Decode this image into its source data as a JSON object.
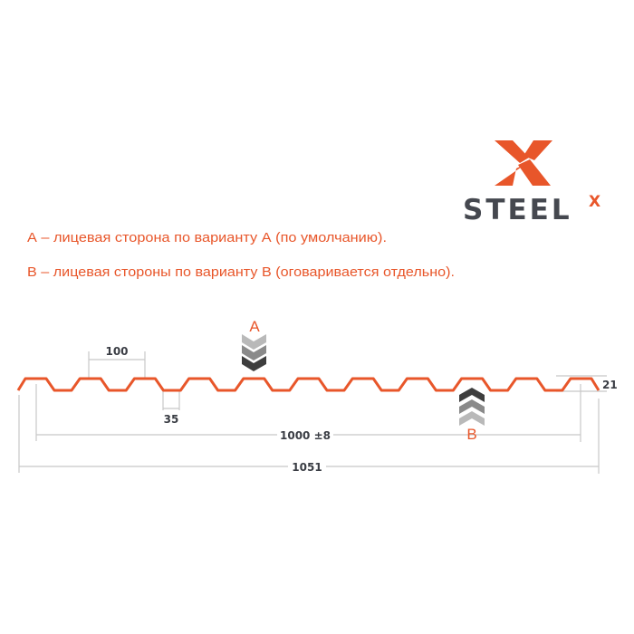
{
  "logo": {
    "text": "STEEL",
    "superscript": "X"
  },
  "description": {
    "line_a": "А – лицевая сторона по варианту А (по умолчанию).",
    "line_b": "В – лицевая стороны по варианту В (оговаривается отдельно)."
  },
  "sides": {
    "a": "A",
    "b": "B"
  },
  "dimensions": {
    "pitch": "100",
    "bottom_width": "35",
    "height": "21",
    "useful_width": "1000 ±8",
    "total_width": "1051"
  },
  "colors": {
    "accent": "#e8562a",
    "dim_line": "#c8c8c8",
    "logo_dark": "#45484f"
  }
}
